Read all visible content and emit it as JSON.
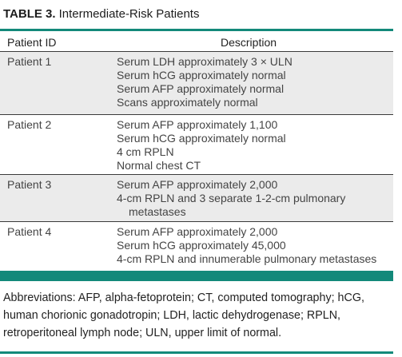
{
  "table": {
    "label": "TABLE 3.",
    "title": "Intermediate-Risk Patients",
    "headers": {
      "id": "Patient ID",
      "description": "Description"
    },
    "rows": [
      {
        "id": "Patient 1",
        "lines": [
          "Serum LDH approximately 3 × ULN",
          "Serum hCG approximately normal",
          "Serum AFP approximately normal",
          "Scans approximately normal"
        ]
      },
      {
        "id": "Patient 2",
        "lines": [
          "Serum AFP approximately 1,100",
          "Serum hCG approximately normal",
          "4 cm RPLN",
          "Normal chest CT"
        ]
      },
      {
        "id": "Patient 3",
        "lines": [
          "Serum AFP approximately 2,000",
          "4-cm RPLN and 3 separate 1-2-cm pulmonary",
          "metastases"
        ]
      },
      {
        "id": "Patient 4",
        "lines": [
          "Serum AFP approximately 2,000",
          "Serum hCG approximately 45,000",
          "4-cm RPLN and innumerable pulmonary metastases"
        ]
      }
    ],
    "footnote": "Abbreviations: AFP, alpha-fetoprotein; CT, computed tomography; hCG, human chorionic gonadotropin; LDH, lactic dehydrogenase; RPLN, retroperitoneal lymph node; ULN, upper limit of normal."
  },
  "colors": {
    "accent": "#13897a",
    "row_shade": "#ebebeb"
  }
}
